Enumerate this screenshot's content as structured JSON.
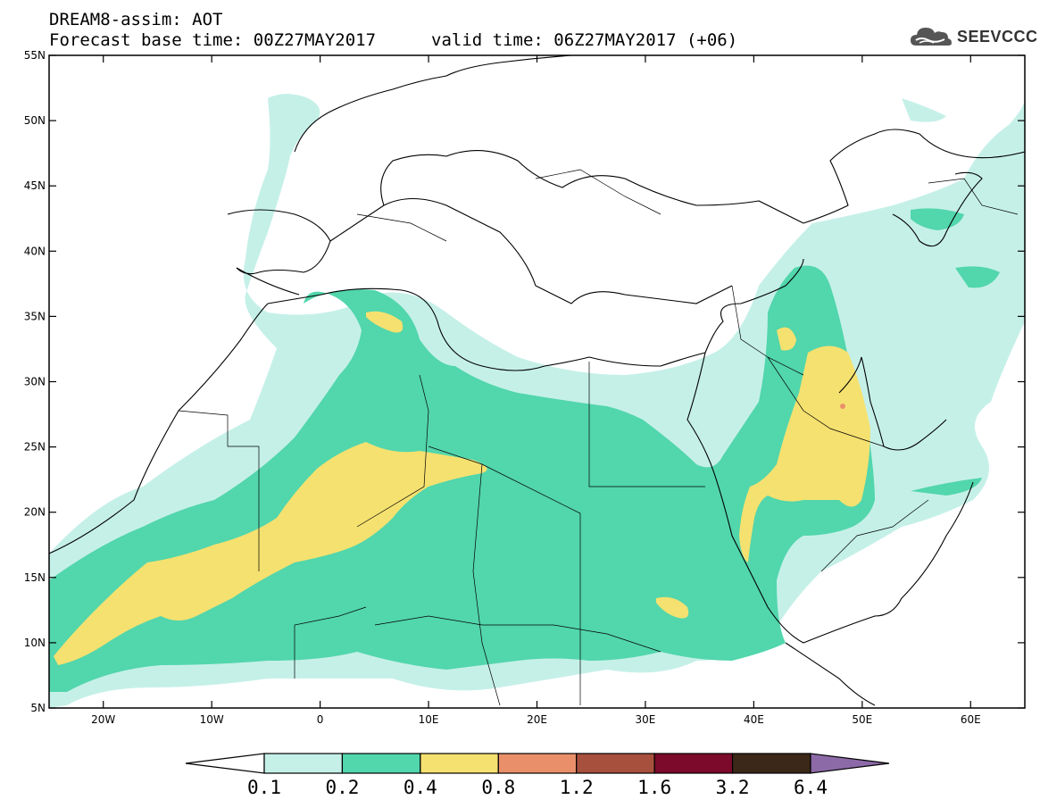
{
  "header": {
    "title": "DREAM8-assim: AOT",
    "base_time": "Forecast base time: 00Z27MAY2017",
    "valid_time": "valid time: 06Z27MAY2017 (+06)"
  },
  "logo": {
    "text": "SEEVCCC",
    "icon": "cloud-icon"
  },
  "map": {
    "projection": "cylindrical",
    "lon_range": [
      -25,
      65
    ],
    "lat_range": [
      5,
      55
    ],
    "lat_ticks": [
      "5N",
      "10N",
      "15N",
      "20N",
      "25N",
      "30N",
      "35N",
      "40N",
      "45N",
      "50N",
      "55N"
    ],
    "lon_ticks": [
      "20W",
      "10W",
      "0",
      "10E",
      "20E",
      "30E",
      "40E",
      "50E",
      "60E"
    ],
    "variable": "Aerosol Optical Thickness"
  },
  "colorbar": {
    "labels": [
      "0.1",
      "0.2",
      "0.4",
      "0.8",
      "1.2",
      "1.6",
      "3.2",
      "6.4"
    ],
    "colors": [
      "#ffffff",
      "#c5f0e8",
      "#52d6ac",
      "#f5e170",
      "#e9906a",
      "#a8503e",
      "#7c0a2a",
      "#3c2818",
      "#8c6aa8"
    ]
  }
}
